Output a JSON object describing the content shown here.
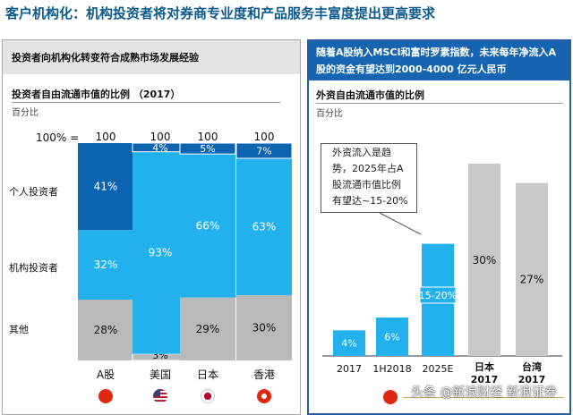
{
  "title": "客户机构化：机构投资者将对券商专业度和产品服务丰富度提出更高要求",
  "left_panel": {
    "header": "投资者向机构化转变符合成熟市场发展经验",
    "chart_title": "投资者自由流通市值的比例 （2017）",
    "unit": "百分比",
    "total_label": "100% =",
    "row_labels": [
      "个人投资者",
      "机构投资者",
      "其他"
    ]
  },
  "right_panel": {
    "header": "随着A股纳入MSCI和富时罗素指数，未来每年净流入A 股的资金有望达到2000-4000 亿元人民币",
    "chart_title": "外资自由流通市值的比例",
    "unit": "百分比",
    "callout": [
      "外资流入是趋",
      "势，2025年占A",
      "股流通市值比例",
      "有望达~15-20%"
    ]
  },
  "colors": {
    "title": "#0b5a8c",
    "individual": "#0c63b0",
    "institutional": "#22b1ec",
    "other": "#b9b9b9",
    "top_band": "#0f5fae",
    "bar_grey": "#c8c8c8",
    "header_blue": "#1765b0"
  },
  "flags": [
    "china-flag",
    "usa-flag",
    "japan-flag",
    "hongkong-flag",
    "china-flag"
  ],
  "watermark": "头条 @新浪财经 新浪证券",
  "chart_data": [
    {
      "type": "bar",
      "stacked": true,
      "title": "投资者自由流通市值的比例 （2017）",
      "ylabel": "百分比",
      "categories": [
        "A股",
        "美国",
        "日本",
        "香港"
      ],
      "totals": [
        "100",
        "100",
        "100",
        "100"
      ],
      "series": [
        {
          "name": "其他",
          "values": [
            28,
            3,
            29,
            30
          ],
          "labels": [
            "28%",
            "3%",
            "29%",
            "30%"
          ]
        },
        {
          "name": "机构投资者",
          "values": [
            32,
            93,
            66,
            63
          ],
          "labels": [
            "32%",
            "93%",
            "66%",
            "63%"
          ]
        },
        {
          "name": "个人投资者",
          "values": [
            41,
            4,
            5,
            7
          ],
          "labels": [
            "41%",
            "4%",
            "5%",
            "7%"
          ]
        }
      ]
    },
    {
      "type": "bar",
      "title": "外资自由流通市值的比例",
      "ylabel": "百分比",
      "categories": [
        "2017",
        "1H2018",
        "2025E",
        "日本 2017",
        "台湾 2017"
      ],
      "values": [
        4,
        6,
        17.5,
        30,
        27
      ],
      "labels": [
        "4%",
        "6%",
        "15-20%",
        "30%",
        "27%"
      ],
      "ylim": [
        0,
        35
      ]
    }
  ]
}
